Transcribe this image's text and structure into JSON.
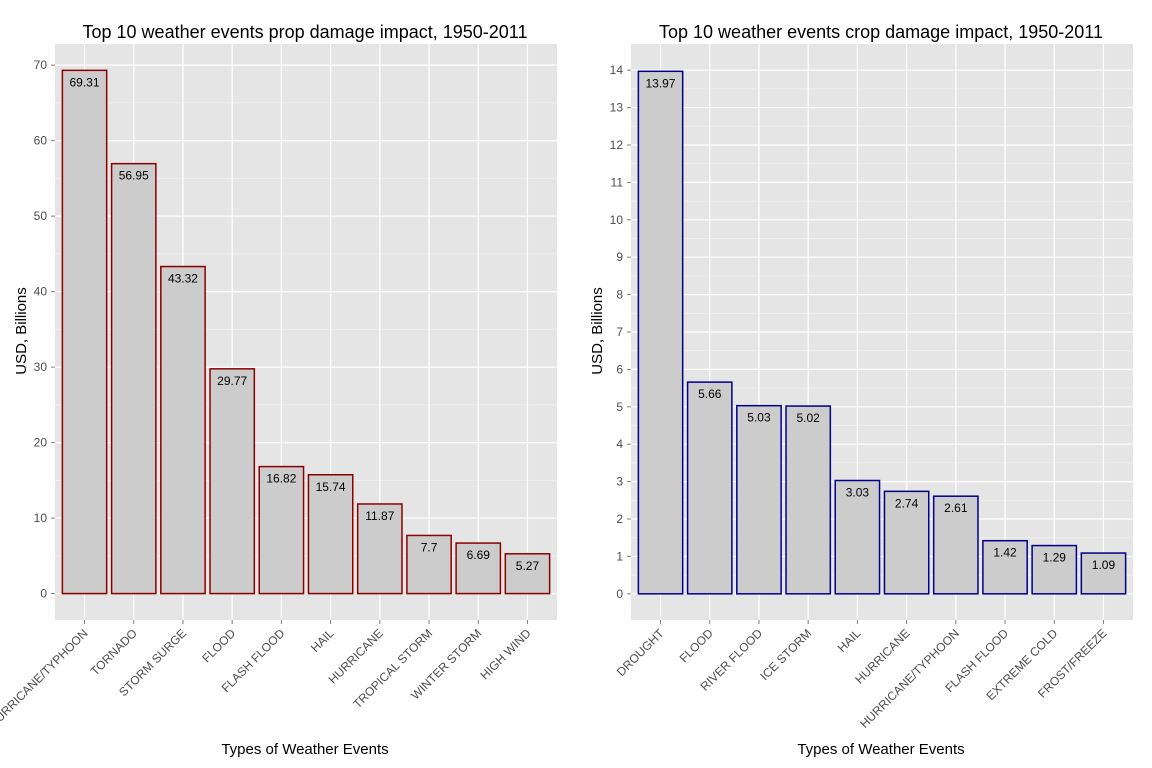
{
  "chart_data": [
    {
      "type": "bar",
      "title": "Top 10 weather events prop damage impact, 1950-2011",
      "xlabel": "Types of Weather Events",
      "ylabel": "USD, Billions",
      "categories": [
        "HURRICANE/TYPHOON",
        "TORNADO",
        "STORM SURGE",
        "FLOOD",
        "FLASH FLOOD",
        "HAIL",
        "HURRICANE",
        "TROPICAL STORM",
        "WINTER STORM",
        "HIGH WIND"
      ],
      "values": [
        69.31,
        56.95,
        43.32,
        29.77,
        16.82,
        15.74,
        11.87,
        7.7,
        6.69,
        5.27
      ],
      "labels": [
        "69.31",
        "56.95",
        "43.32",
        "29.77",
        "16.82",
        "15.74",
        "11.87",
        "7.7",
        "6.69",
        "5.27"
      ],
      "yticks": [
        0,
        10,
        20,
        30,
        40,
        50,
        60,
        70
      ],
      "ylim": [
        -3.5,
        72.8
      ],
      "grid": true,
      "bar_fill": "#cccccc",
      "bar_outline": "#8b0000"
    },
    {
      "type": "bar",
      "title": "Top 10 weather events crop damage impact, 1950-2011",
      "xlabel": "Types of Weather Events",
      "ylabel": "USD, Billions",
      "categories": [
        "DROUGHT",
        "FLOOD",
        "RIVER FLOOD",
        "ICE STORM",
        "HAIL",
        "HURRICANE",
        "HURRICANE/TYPHOON",
        "FLASH FLOOD",
        "EXTREME COLD",
        "FROST/FREEZE"
      ],
      "values": [
        13.97,
        5.66,
        5.03,
        5.02,
        3.03,
        2.74,
        2.61,
        1.42,
        1.29,
        1.09
      ],
      "labels": [
        "13.97",
        "5.66",
        "5.03",
        "5.02",
        "3.03",
        "2.74",
        "2.61",
        "1.42",
        "1.29",
        "1.09"
      ],
      "yticks": [
        0,
        1,
        2,
        3,
        4,
        5,
        6,
        7,
        8,
        9,
        10,
        11,
        12,
        13,
        14
      ],
      "ylim": [
        -0.7,
        14.7
      ],
      "grid": true,
      "bar_fill": "#cccccc",
      "bar_outline": "#00008b"
    }
  ],
  "theme": {
    "panel_background": "#e5e5e5",
    "grid_major": "#ffffff",
    "grid_minor": "#f2f2f2"
  }
}
